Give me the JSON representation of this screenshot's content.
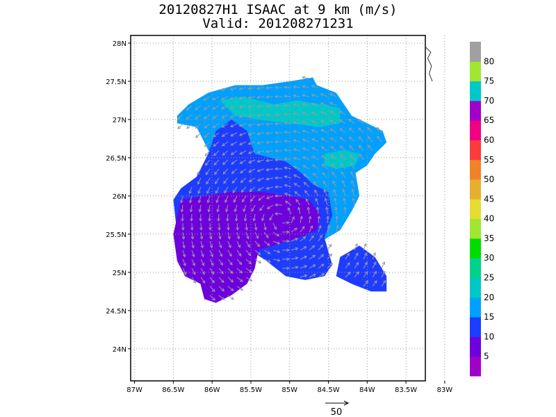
{
  "chart_data": {
    "type": "heatmap",
    "title_line1": "20120827H1 ISAAC at 9 km (m/s)",
    "title_line2": "Valid: 201208271231",
    "x_ticks": [
      "87W",
      "86.5W",
      "86W",
      "85.5W",
      "85W",
      "84.5W",
      "84W",
      "83.5W",
      "83W"
    ],
    "x_tick_values": [
      -87,
      -86.5,
      -86,
      -85.5,
      -85,
      -84.5,
      -84,
      -83.5,
      -83
    ],
    "y_ticks": [
      "24N",
      "24.5N",
      "25N",
      "25.5N",
      "26N",
      "26.5N",
      "27N",
      "27.5N",
      "28N"
    ],
    "y_tick_values": [
      24,
      24.5,
      25,
      25.5,
      26,
      26.5,
      27,
      27.5,
      28
    ],
    "xlim": [
      -87.05,
      -83.25
    ],
    "ylim": [
      23.58,
      28.1
    ],
    "grid": true,
    "grid_style": "dotted",
    "colorbar": {
      "position": "right",
      "labels": [
        "5",
        "10",
        "15",
        "20",
        "25",
        "30",
        "35",
        "40",
        "45",
        "50",
        "55",
        "60",
        "65",
        "70",
        "75",
        "80"
      ],
      "colors": [
        "#a000c8",
        "#6e00dc",
        "#1e3cff",
        "#00a0ff",
        "#00c8c8",
        "#00d28c",
        "#00dc00",
        "#a0e632",
        "#e6dc32",
        "#e6af2d",
        "#f08228",
        "#fa3c3c",
        "#f00082",
        "#a000c8",
        "#00c8c8",
        "#a0e632",
        "#a0a0a0"
      ]
    },
    "reference_vector": {
      "label": "50",
      "speed_ms": 50
    },
    "regions": [
      {
        "speed_class": "20-25",
        "color": "#00a0ff",
        "polygon": [
          [
            -86.45,
            27.05
          ],
          [
            -86.3,
            27.2
          ],
          [
            -86.05,
            27.35
          ],
          [
            -85.7,
            27.45
          ],
          [
            -85.35,
            27.45
          ],
          [
            -85.0,
            27.5
          ],
          [
            -84.7,
            27.55
          ],
          [
            -84.65,
            27.45
          ],
          [
            -84.4,
            27.35
          ],
          [
            -84.2,
            27.05
          ],
          [
            -84.0,
            26.95
          ],
          [
            -83.8,
            26.85
          ],
          [
            -83.75,
            26.7
          ],
          [
            -83.9,
            26.55
          ],
          [
            -84.0,
            26.4
          ],
          [
            -84.15,
            26.3
          ],
          [
            -84.1,
            26.0
          ],
          [
            -84.2,
            25.8
          ],
          [
            -84.35,
            25.55
          ],
          [
            -84.6,
            25.4
          ],
          [
            -84.75,
            25.45
          ],
          [
            -84.9,
            25.7
          ],
          [
            -85.1,
            25.75
          ],
          [
            -85.3,
            25.9
          ],
          [
            -85.5,
            26.1
          ],
          [
            -85.8,
            26.3
          ],
          [
            -86.0,
            26.5
          ],
          [
            -86.1,
            26.7
          ],
          [
            -86.2,
            26.9
          ],
          [
            -86.45,
            26.95
          ]
        ]
      },
      {
        "speed_class": "25-30",
        "color": "#00c8c8",
        "polygon": [
          [
            -85.9,
            27.25
          ],
          [
            -85.6,
            27.3
          ],
          [
            -85.2,
            27.2
          ],
          [
            -84.9,
            27.25
          ],
          [
            -84.6,
            27.2
          ],
          [
            -84.35,
            27.15
          ],
          [
            -84.35,
            26.95
          ],
          [
            -84.6,
            26.9
          ],
          [
            -85.0,
            26.95
          ],
          [
            -85.4,
            27.0
          ],
          [
            -85.7,
            27.05
          ]
        ]
      },
      {
        "speed_class": "25-30",
        "color": "#00c8c8",
        "polygon": [
          [
            -84.55,
            26.55
          ],
          [
            -84.3,
            26.6
          ],
          [
            -84.1,
            26.55
          ],
          [
            -84.15,
            26.4
          ],
          [
            -84.4,
            26.35
          ],
          [
            -84.55,
            26.4
          ]
        ]
      },
      {
        "speed_class": "10-15",
        "color": "#1e3cff",
        "polygon": [
          [
            -86.4,
            26.1
          ],
          [
            -86.2,
            26.25
          ],
          [
            -86.05,
            26.55
          ],
          [
            -85.95,
            26.85
          ],
          [
            -85.75,
            27.0
          ],
          [
            -85.55,
            26.85
          ],
          [
            -85.45,
            26.55
          ],
          [
            -85.05,
            26.45
          ],
          [
            -84.85,
            26.3
          ],
          [
            -84.7,
            26.15
          ],
          [
            -84.5,
            26.05
          ],
          [
            -84.45,
            25.75
          ],
          [
            -84.55,
            25.45
          ],
          [
            -84.45,
            25.1
          ],
          [
            -84.55,
            24.95
          ],
          [
            -84.8,
            24.9
          ],
          [
            -85.05,
            24.95
          ],
          [
            -85.3,
            25.15
          ],
          [
            -85.6,
            25.35
          ],
          [
            -85.9,
            25.4
          ],
          [
            -86.1,
            25.35
          ],
          [
            -86.45,
            25.5
          ],
          [
            -86.5,
            25.95
          ]
        ]
      },
      {
        "speed_class": "10-15",
        "color": "#1e3cff",
        "polygon": [
          [
            -84.35,
            25.2
          ],
          [
            -84.1,
            25.35
          ],
          [
            -83.9,
            25.2
          ],
          [
            -83.75,
            24.95
          ],
          [
            -83.75,
            24.75
          ],
          [
            -83.95,
            24.75
          ],
          [
            -84.2,
            24.85
          ],
          [
            -84.4,
            24.95
          ]
        ]
      },
      {
        "speed_class": "5-10",
        "color": "#6e00dc",
        "polygon": [
          [
            -86.4,
            25.95
          ],
          [
            -86.1,
            26.0
          ],
          [
            -85.75,
            26.05
          ],
          [
            -85.35,
            26.05
          ],
          [
            -85.0,
            26.0
          ],
          [
            -84.75,
            25.95
          ],
          [
            -84.6,
            25.75
          ],
          [
            -84.65,
            25.55
          ],
          [
            -84.9,
            25.45
          ],
          [
            -85.2,
            25.35
          ],
          [
            -85.4,
            25.3
          ],
          [
            -85.45,
            25.05
          ],
          [
            -85.55,
            24.85
          ],
          [
            -85.75,
            24.7
          ],
          [
            -85.95,
            24.6
          ],
          [
            -86.1,
            24.65
          ],
          [
            -86.15,
            24.85
          ],
          [
            -86.35,
            24.95
          ],
          [
            -86.45,
            25.15
          ],
          [
            -86.5,
            25.5
          ]
        ]
      }
    ]
  }
}
